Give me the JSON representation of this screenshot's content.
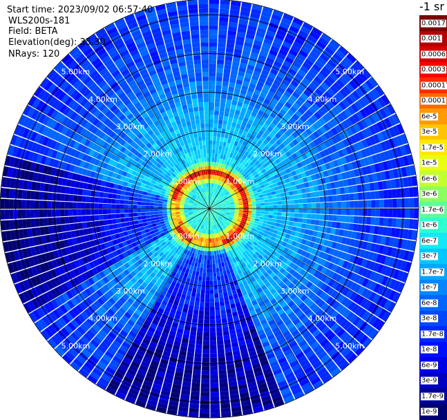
{
  "header": {
    "start_time": "Start time: 2023/09/02 06:57:40",
    "instrument": "WLS200s-181",
    "field": "Field: BETA",
    "elevation": "Elevation(deg): 35.30",
    "nrays": "NRays: 120"
  },
  "colorbar": {
    "unit_label": "-1 sr",
    "levels": [
      {
        "label": "0.0017",
        "color": "#7a0000"
      },
      {
        "label": "0.001",
        "color": "#b30000"
      },
      {
        "label": "0.0006",
        "color": "#d60000"
      },
      {
        "label": "0.0003",
        "color": "#ff0000"
      },
      {
        "label": "0.00017",
        "color": "#ff2a00"
      },
      {
        "label": "0.0001",
        "color": "#ff6a00"
      },
      {
        "label": "6e-5",
        "color": "#ff9a00"
      },
      {
        "label": "3e-5",
        "color": "#ffc400"
      },
      {
        "label": "1.7e-5",
        "color": "#ffe800"
      },
      {
        "label": "1e-5",
        "color": "#eaff10"
      },
      {
        "label": "6e-6",
        "color": "#c2ff30"
      },
      {
        "label": "3e-6",
        "color": "#8cff60"
      },
      {
        "label": "1.7e-6",
        "color": "#5cff9a"
      },
      {
        "label": "1e-6",
        "color": "#2cffd0"
      },
      {
        "label": "6e-7",
        "color": "#14e8f4"
      },
      {
        "label": "3e-7",
        "color": "#00c8ff"
      },
      {
        "label": "1.7e-7",
        "color": "#00a6ff"
      },
      {
        "label": "1e-7",
        "color": "#0086ff"
      },
      {
        "label": "6e-8",
        "color": "#0066ff"
      },
      {
        "label": "3e-8",
        "color": "#0048ff"
      },
      {
        "label": "1.7e-8",
        "color": "#0028ff"
      },
      {
        "label": "1e-8",
        "color": "#000eff"
      },
      {
        "label": "6e-9",
        "color": "#0000e8"
      },
      {
        "label": "3e-9",
        "color": "#0000c0"
      },
      {
        "label": "1.7e-9",
        "color": "#000098"
      },
      {
        "label": "1e-9",
        "color": "#000070"
      }
    ]
  },
  "chart_data": {
    "type": "heatmap",
    "projection": "polar-ppi",
    "field": "BETA",
    "elevation_deg": 35.3,
    "n_rays": 120,
    "max_range_km": 5.4,
    "range_rings_km": [
      1.0,
      2.0,
      3.0,
      4.0,
      5.0
    ],
    "ring_labels": [
      "1.00km",
      "2.00km",
      "3.00km",
      "4.00km",
      "5.00km"
    ],
    "ring_label_bearings_deg": [
      45,
      135,
      225,
      315
    ],
    "spokes_every_deg": 30,
    "color_scale": "log",
    "value_range": [
      1e-09,
      0.0017
    ],
    "profile_by_range_km": [
      {
        "range_km": 0.0,
        "log10_beta": -6.0
      },
      {
        "range_km": 0.6,
        "log10_beta": -6.2
      },
      {
        "range_km": 0.95,
        "log10_beta": -3.2
      },
      {
        "range_km": 1.2,
        "log10_beta": -6.4
      },
      {
        "range_km": 2.5,
        "log10_beta": -6.8
      },
      {
        "range_km": 3.3,
        "log10_beta": -7.2
      },
      {
        "range_km": 4.0,
        "log10_beta": -7.5
      },
      {
        "range_km": 5.0,
        "log10_beta": -7.7
      }
    ],
    "low_signal_sectors_deg": [
      [
        240,
        285
      ],
      [
        160,
        210
      ]
    ],
    "grid": true
  }
}
